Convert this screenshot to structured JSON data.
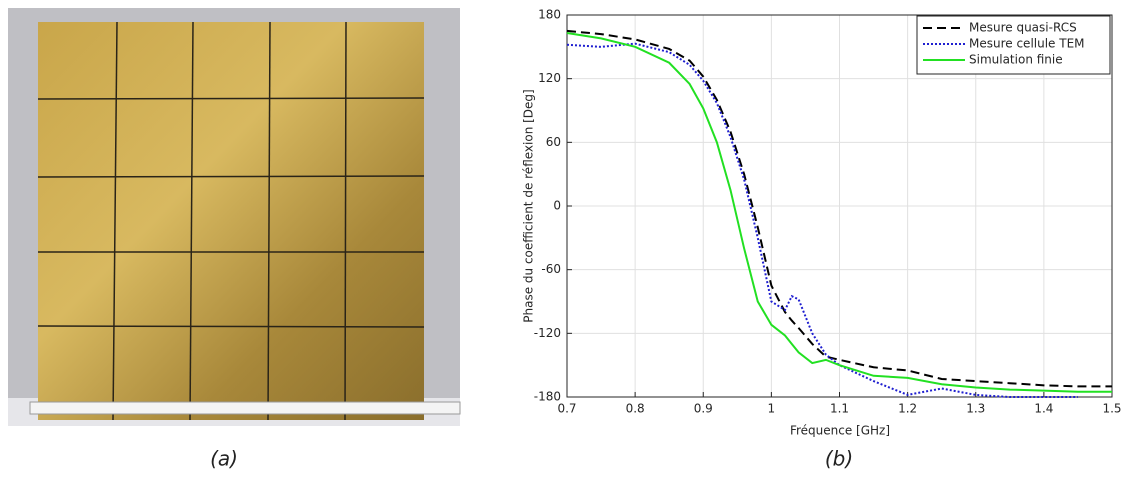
{
  "captions": [
    "(a)",
    "(b)"
  ],
  "chart_data": {
    "type": "line",
    "xlabel": "Fréquence [GHz]",
    "ylabel": "Phase du coefficient de réflexion [Deg]",
    "x": [
      0.7,
      0.75,
      0.8,
      0.85,
      0.88,
      0.9,
      0.92,
      0.94,
      0.96,
      0.98,
      1.0,
      1.02,
      1.03,
      1.04,
      1.06,
      1.08,
      1.1,
      1.15,
      1.2,
      1.25,
      1.3,
      1.35,
      1.4,
      1.45,
      1.5
    ],
    "series": [
      {
        "name": "Mesure quasi-RCS",
        "color": "#000000",
        "dash": "dashed",
        "values": [
          165,
          162,
          157,
          148,
          137,
          122,
          100,
          70,
          30,
          -20,
          -75,
          -100,
          -108,
          -115,
          -130,
          -142,
          -145,
          -152,
          -155,
          -163,
          -165,
          -167,
          -169,
          -170,
          -170
        ]
      },
      {
        "name": "Mesure cellule TEM",
        "color": "#1f1fd0",
        "dash": "dotted",
        "values": [
          152,
          150,
          153,
          145,
          133,
          118,
          97,
          65,
          25,
          -30,
          -90,
          -98,
          -85,
          -88,
          -120,
          -140,
          -150,
          -165,
          -178,
          -172,
          -178,
          -180,
          -180,
          -180,
          null
        ]
      },
      {
        "name": "Simulation finie",
        "color": "#22e022",
        "dash": "solid",
        "values": [
          163,
          158,
          150,
          135,
          115,
          92,
          60,
          15,
          -40,
          -90,
          -112,
          -122,
          -130,
          -138,
          -148,
          -145,
          -150,
          -160,
          -162,
          -168,
          -171,
          -173,
          -174,
          -175,
          -175
        ]
      }
    ],
    "xlim": [
      0.7,
      1.5
    ],
    "xticks": [
      0.7,
      0.8,
      0.9,
      1,
      1.1,
      1.2,
      1.3,
      1.4,
      1.5
    ],
    "ylim": [
      -180,
      180
    ],
    "yticks": [
      -180,
      -120,
      -60,
      0,
      60,
      120,
      180
    ],
    "grid": true,
    "legend": "upper right"
  }
}
